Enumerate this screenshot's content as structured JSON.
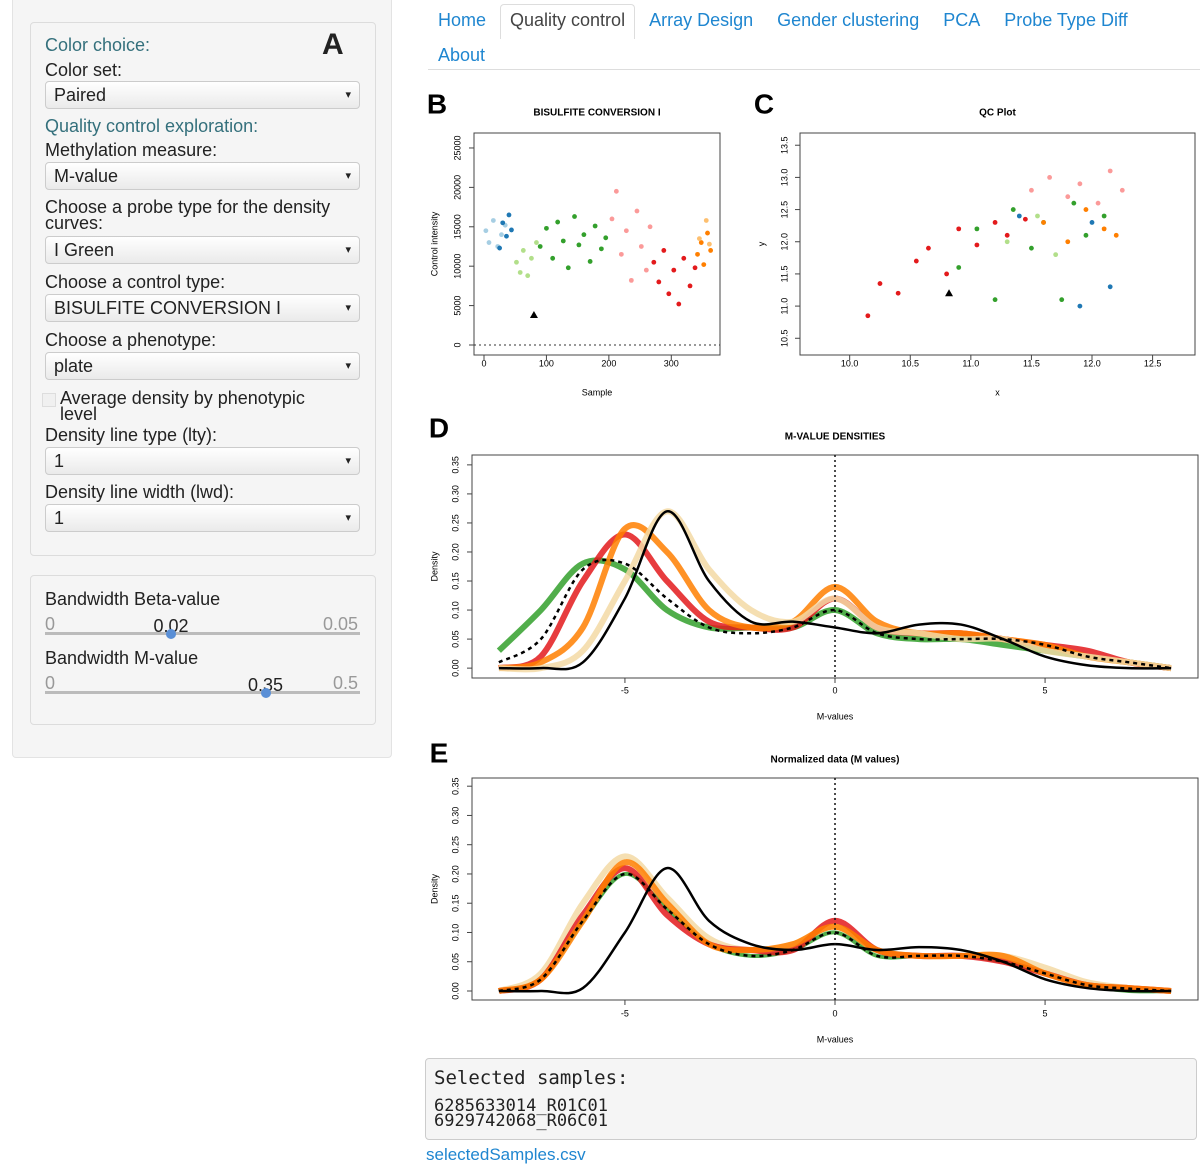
{
  "sidebar": {
    "panel_label": "A",
    "color_heading": "Color choice:",
    "color_set_label": "Color set:",
    "color_set": "Paired",
    "qc_heading": "Quality control exploration:",
    "methylation_label": "Methylation measure:",
    "methylation": "M-value",
    "probe_label": "Choose a probe type for the density curves:",
    "probe": "I Green",
    "control_label": "Choose a control type:",
    "control": "BISULFITE CONVERSION I",
    "phenotype_label": "Choose a phenotype:",
    "phenotype": "plate",
    "average_label": "Average density by phenotypic level",
    "lty_label": "Density line type (lty):",
    "lty": "1",
    "lwd_label": "Density line width (lwd):",
    "lwd": "1"
  },
  "sliders": [
    {
      "label": "Bandwidth Beta-value",
      "min": 0,
      "max": 0.05,
      "value": 0.02
    },
    {
      "label": "Bandwidth M-value",
      "min": 0,
      "max": 0.5,
      "value": 0.35
    }
  ],
  "tabs": [
    "Home",
    "Quality control",
    "Array Design",
    "Gender clustering",
    "PCA",
    "Probe Type Diff",
    "About"
  ],
  "active_tab": 1,
  "chart_data": [
    {
      "type": "scatter",
      "panel_label": "B",
      "title": "BISULFITE CONVERSION I",
      "x_label": "Sample",
      "y_label": "Control intensity",
      "xlim": [
        -16,
        378
      ],
      "ylim": [
        -1270,
        26900
      ],
      "xticks": [
        0,
        100,
        200,
        300
      ],
      "yticks": [
        0,
        5000,
        10000,
        15000,
        20000,
        25000
      ],
      "hline": 0,
      "series": [
        {
          "color": "#a6cee3",
          "x": [
            3,
            8,
            15,
            22,
            28,
            34
          ],
          "y": [
            14500,
            13000,
            15800,
            12500,
            14000,
            15200
          ]
        },
        {
          "color": "#1f78b4",
          "x": [
            25,
            30,
            36,
            40,
            44
          ],
          "y": [
            12300,
            15500,
            13800,
            16500,
            14600
          ]
        },
        {
          "color": "#b2df8a",
          "x": [
            52,
            58,
            63,
            70,
            76,
            84
          ],
          "y": [
            10500,
            9200,
            12000,
            8800,
            11000,
            13000
          ]
        },
        {
          "color": "#33a02c",
          "x": [
            90,
            100,
            110,
            118,
            127,
            135,
            145,
            152,
            160,
            170,
            178,
            188,
            195
          ],
          "y": [
            12500,
            14800,
            11000,
            15600,
            13200,
            9800,
            16300,
            12700,
            14000,
            10600,
            15100,
            12200,
            13600
          ]
        },
        {
          "color": "#fb9a99",
          "x": [
            205,
            212,
            220,
            228,
            236,
            245,
            252,
            260,
            266
          ],
          "y": [
            16000,
            19500,
            11500,
            14500,
            8200,
            17000,
            12500,
            9500,
            15000
          ]
        },
        {
          "color": "#e31a1c",
          "x": [
            272,
            280,
            288,
            296,
            304,
            312,
            320,
            330,
            338
          ],
          "y": [
            10500,
            8000,
            12000,
            6500,
            9500,
            5200,
            11000,
            7500,
            9800
          ]
        },
        {
          "color": "#ff7f00",
          "x": [
            342,
            348,
            352,
            358,
            363
          ],
          "y": [
            11500,
            13000,
            10200,
            14200,
            12000
          ]
        },
        {
          "color": "#fdbf6f",
          "x": [
            345,
            356,
            361
          ],
          "y": [
            13500,
            15800,
            12800
          ]
        },
        {
          "color": "#000000",
          "marker": "triangle",
          "x": [
            80
          ],
          "y": [
            3800
          ]
        }
      ]
    },
    {
      "type": "scatter",
      "panel_label": "C",
      "title": "QC Plot",
      "x_label": "x",
      "y_label": "y",
      "xlim": [
        9.59,
        12.85
      ],
      "ylim": [
        10.24,
        13.69
      ],
      "xticks": [
        {
          "value": 10,
          "label": "10.0"
        },
        10.5,
        {
          "value": 11,
          "label": "11.0"
        },
        11.5,
        {
          "value": 12,
          "label": "12.0"
        },
        12.5
      ],
      "yticks": [
        10.5,
        {
          "value": 11,
          "label": "11.0"
        },
        11.5,
        {
          "value": 12,
          "label": "12.0"
        },
        12.5,
        {
          "value": 13,
          "label": "13.0"
        },
        13.5
      ],
      "series": [
        {
          "color": "#e31a1c",
          "x": [
            10.15,
            10.25,
            10.4,
            10.55,
            10.65,
            10.8,
            10.9,
            11.05,
            11.2,
            11.3,
            11.45
          ],
          "y": [
            10.85,
            11.35,
            11.2,
            11.7,
            11.9,
            11.5,
            12.2,
            11.95,
            12.3,
            12.1,
            12.35
          ]
        },
        {
          "color": "#33a02c",
          "x": [
            10.9,
            11.05,
            11.2,
            11.35,
            11.5,
            11.6,
            11.75,
            11.85,
            11.95,
            12.1
          ],
          "y": [
            11.6,
            12.2,
            11.1,
            12.5,
            11.9,
            12.3,
            11.1,
            12.6,
            12.1,
            12.4
          ]
        },
        {
          "color": "#fb9a99",
          "x": [
            11.5,
            11.65,
            11.8,
            11.9,
            12.05,
            12.15,
            12.25
          ],
          "y": [
            12.8,
            13.0,
            12.7,
            12.9,
            12.6,
            13.1,
            12.8
          ]
        },
        {
          "color": "#b2df8a",
          "x": [
            11.3,
            11.55,
            11.7
          ],
          "y": [
            12.0,
            12.4,
            11.8
          ]
        },
        {
          "color": "#ff7f00",
          "x": [
            11.6,
            11.8,
            11.95,
            12.1,
            12.2
          ],
          "y": [
            12.3,
            12.0,
            12.5,
            12.2,
            12.1
          ]
        },
        {
          "color": "#1f78b4",
          "x": [
            11.4,
            11.9,
            12.0,
            12.15
          ],
          "y": [
            12.4,
            11.0,
            12.3,
            11.3
          ]
        },
        {
          "color": "#000000",
          "marker": "triangle",
          "x": [
            10.82
          ],
          "y": [
            11.2
          ]
        }
      ]
    },
    {
      "type": "line",
      "panel_label": "D",
      "title": "M-VALUE DENSITIES",
      "x_label": "M-values",
      "y_label": "Density",
      "xlim": [
        -8.64,
        8.64
      ],
      "ylim": [
        -0.017,
        0.367
      ],
      "xticks": [
        -5,
        0,
        5
      ],
      "vline": 0,
      "yticks": [
        {
          "value": 0,
          "label": "0.00"
        },
        0.05,
        {
          "value": 0.1,
          "label": "0.10"
        },
        0.15,
        {
          "value": 0.2,
          "label": "0.20"
        },
        0.25,
        {
          "value": 0.3,
          "label": "0.30"
        },
        0.35
      ],
      "x": [
        -8,
        -7,
        -6,
        -5,
        -4,
        -3,
        -2,
        -1,
        0,
        1,
        2,
        3,
        4,
        5,
        6,
        7,
        8
      ],
      "series": [
        {
          "color": "#33a02c",
          "width": 6,
          "values": [
            0.03,
            0.1,
            0.18,
            0.17,
            0.1,
            0.07,
            0.07,
            0.07,
            0.1,
            0.06,
            0.05,
            0.05,
            0.04,
            0.03,
            0.02,
            0.01,
            0
          ]
        },
        {
          "color": "#e31a1c",
          "width": 6,
          "values": [
            0,
            0.02,
            0.15,
            0.23,
            0.15,
            0.08,
            0.07,
            0.07,
            0.12,
            0.07,
            0.06,
            0.06,
            0.05,
            0.04,
            0.03,
            0.01,
            0
          ]
        },
        {
          "color": "#ff7f00",
          "width": 6,
          "values": [
            0,
            0.01,
            0.07,
            0.24,
            0.2,
            0.1,
            0.07,
            0.08,
            0.14,
            0.08,
            0.06,
            0.06,
            0.05,
            0.04,
            0.02,
            0.01,
            0
          ]
        },
        {
          "color": "#f3d9a4",
          "width": 6,
          "values": [
            0,
            0,
            0.03,
            0.15,
            0.27,
            0.17,
            0.1,
            0.08,
            0.12,
            0.07,
            0.06,
            0.05,
            0.05,
            0.03,
            0.02,
            0.01,
            0
          ]
        },
        {
          "color": "#000000",
          "width": 2.5,
          "values": [
            0,
            0,
            0.01,
            0.12,
            0.27,
            0.15,
            0.08,
            0.08,
            0.07,
            0.06,
            0.075,
            0.075,
            0.05,
            0.02,
            0.005,
            0,
            0
          ]
        },
        {
          "color": "#000000",
          "width": 2.5,
          "dash": true,
          "values": [
            0.01,
            0.05,
            0.17,
            0.18,
            0.12,
            0.07,
            0.06,
            0.07,
            0.1,
            0.06,
            0.05,
            0.05,
            0.05,
            0.04,
            0.02,
            0.01,
            0
          ]
        }
      ]
    },
    {
      "type": "line",
      "panel_label": "E",
      "title": "Normalized data (M values)",
      "x_label": "M-values",
      "y_label": "Density",
      "xlim": [
        -8.64,
        8.64
      ],
      "ylim": [
        -0.0154,
        0.364
      ],
      "xticks": [
        -5,
        0,
        5
      ],
      "vline": 0,
      "yticks": [
        {
          "value": 0,
          "label": "0.00"
        },
        0.05,
        {
          "value": 0.1,
          "label": "0.10"
        },
        0.15,
        {
          "value": 0.2,
          "label": "0.20"
        },
        0.25,
        {
          "value": 0.3,
          "label": "0.30"
        },
        0.35
      ],
      "x": [
        -8,
        -7,
        -6,
        -5,
        -4,
        -3,
        -2,
        -1,
        0,
        1,
        2,
        3,
        4,
        5,
        6,
        7,
        8
      ],
      "series": [
        {
          "color": "#f3d9a4",
          "width": 6,
          "values": [
            0,
            0.03,
            0.15,
            0.23,
            0.16,
            0.09,
            0.07,
            0.08,
            0.11,
            0.07,
            0.06,
            0.06,
            0.06,
            0.04,
            0.015,
            0.005,
            0
          ]
        },
        {
          "color": "#33a02c",
          "width": 4,
          "values": [
            0,
            0.02,
            0.12,
            0.2,
            0.14,
            0.08,
            0.06,
            0.07,
            0.1,
            0.06,
            0.06,
            0.06,
            0.05,
            0.03,
            0.01,
            0,
            0
          ]
        },
        {
          "color": "#e31a1c",
          "width": 6,
          "values": [
            0,
            0.02,
            0.13,
            0.21,
            0.13,
            0.08,
            0.07,
            0.07,
            0.12,
            0.07,
            0.06,
            0.06,
            0.05,
            0.03,
            0.01,
            0.005,
            0
          ]
        },
        {
          "color": "#ff7f00",
          "width": 6,
          "values": [
            0,
            0.02,
            0.12,
            0.22,
            0.15,
            0.08,
            0.07,
            0.08,
            0.11,
            0.07,
            0.06,
            0.06,
            0.06,
            0.03,
            0.01,
            0.005,
            0
          ]
        },
        {
          "color": "#000000",
          "width": 2.5,
          "values": [
            0,
            0,
            0.005,
            0.1,
            0.21,
            0.12,
            0.08,
            0.07,
            0.08,
            0.07,
            0.075,
            0.07,
            0.05,
            0.02,
            0.005,
            0,
            0
          ]
        },
        {
          "color": "#000000",
          "width": 2.5,
          "dash": true,
          "values": [
            0,
            0.02,
            0.12,
            0.2,
            0.14,
            0.08,
            0.06,
            0.07,
            0.1,
            0.06,
            0.06,
            0.06,
            0.05,
            0.03,
            0.01,
            0.004,
            0
          ]
        }
      ]
    }
  ],
  "output": {
    "heading": "Selected samples:",
    "samples": [
      "6285633014_R01C01",
      "6929742068_R06C01"
    ]
  },
  "download_link": "selectedSamples.csv"
}
